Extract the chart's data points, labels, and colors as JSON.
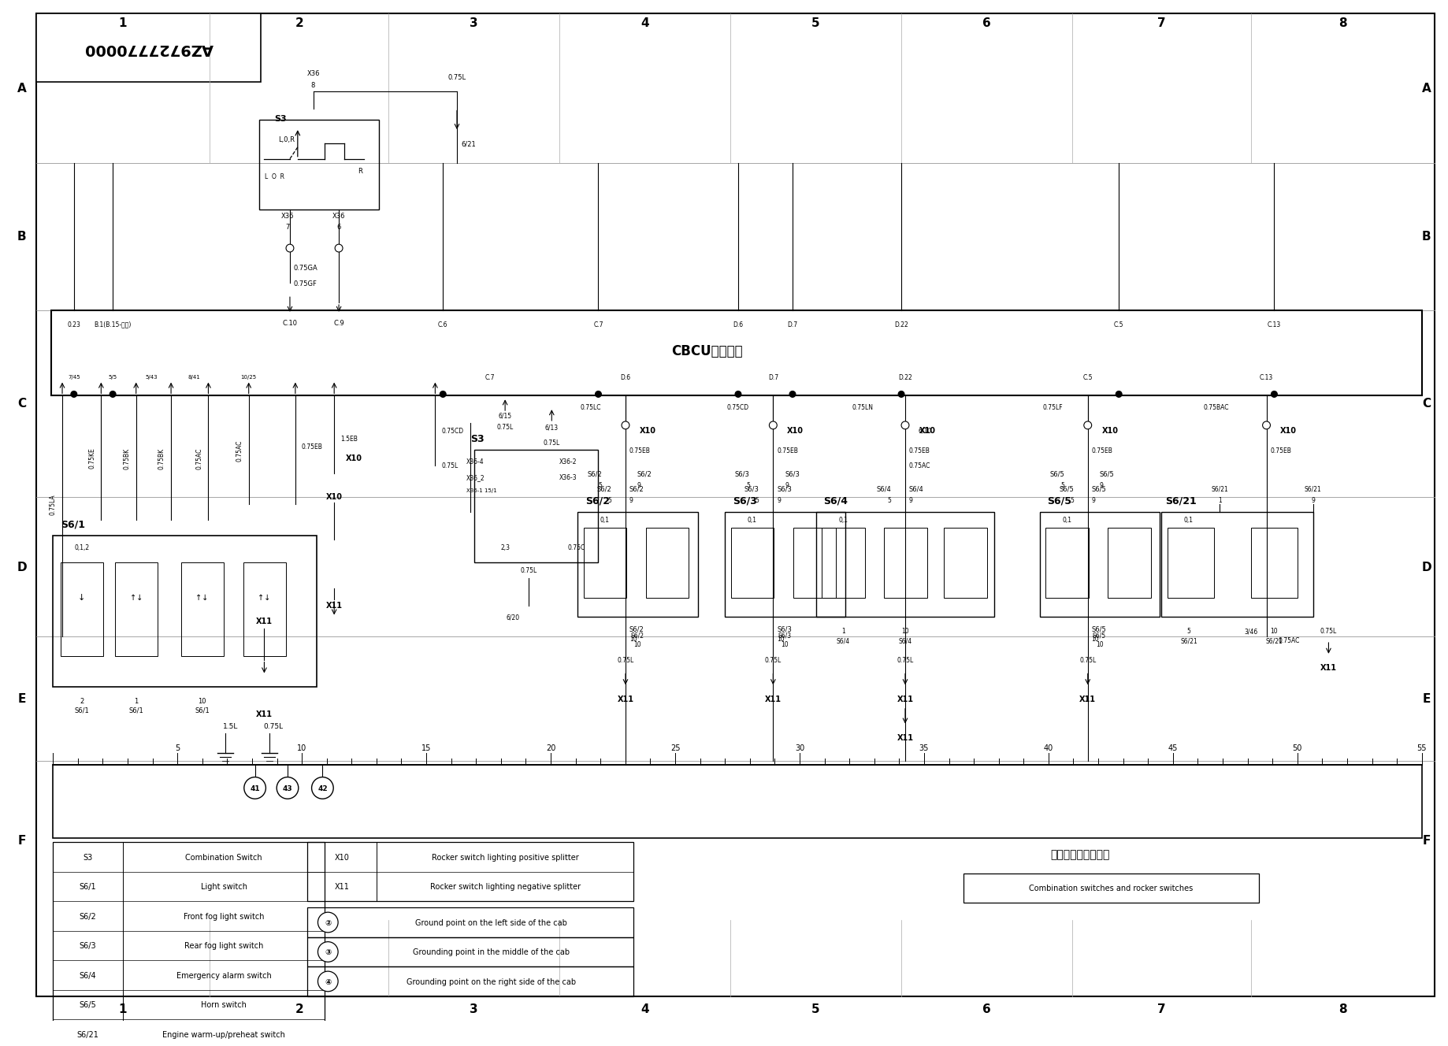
{
  "fig_width": 18.44,
  "fig_height": 13.05,
  "bg_color": "#ffffff",
  "border_color": "#000000",
  "row_labels": [
    "A",
    "B",
    "C",
    "D",
    "E",
    "F"
  ],
  "col_labels": [
    "1",
    "2",
    "3",
    "4",
    "5",
    "6",
    "7",
    "8"
  ],
  "title_text": "AZ9727770000",
  "cbcu_label": "CBCU控制单元",
  "legend_left": [
    [
      "S3",
      "Combination Switch"
    ],
    [
      "S6/1",
      "Light switch"
    ],
    [
      "S6/2",
      "Front fog light switch"
    ],
    [
      "S6/3",
      "Rear fog light switch"
    ],
    [
      "S6/4",
      "Emergency alarm switch"
    ],
    [
      "S6/5",
      "Horn switch"
    ],
    [
      "S6/21",
      "Engine warm-up/preheat switch"
    ]
  ],
  "legend_right1": [
    [
      "X10",
      "Rocker switch lighting positive splitter"
    ],
    [
      "X11",
      "Rocker switch lighting negative splitter"
    ]
  ],
  "legend_right2": [
    [
      "②",
      "Ground point on the left side of the cab"
    ],
    [
      "③",
      "Grounding point in the middle of the cab"
    ],
    [
      "④",
      "Grounding point on the right side of the cab"
    ]
  ],
  "title_cn": "组合开关及拨片开关",
  "title_en": "Combination switches and rocker switches"
}
